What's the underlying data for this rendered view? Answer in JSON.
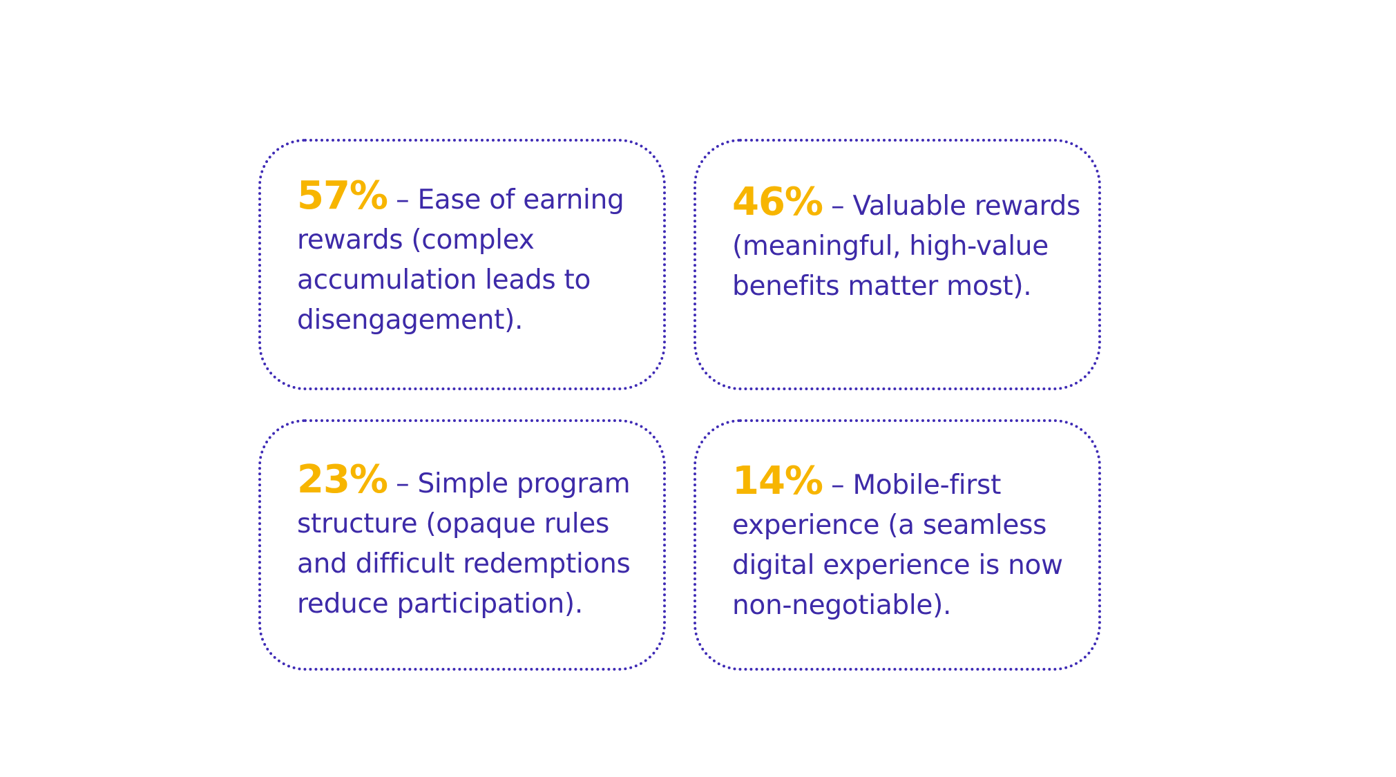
{
  "colors": {
    "accent": "#f7b500",
    "text": "#3d2aa8",
    "border": "#3f2bb5",
    "background": "#ffffff"
  },
  "cards": [
    {
      "percent": "57%",
      "text": " – Ease of earning rewards (complex accumulation leads to disengagement)."
    },
    {
      "percent": "46%",
      "text": " – Valuable rewards (meaningful, high-value benefits matter most)."
    },
    {
      "percent": "23%",
      "text": " – Simple program structure (opaque rules and difficult redemptions reduce participation)."
    },
    {
      "percent": "14%",
      "text": " – Mobile-first experience (a seamless digital experience is now non-negotiable)."
    }
  ]
}
